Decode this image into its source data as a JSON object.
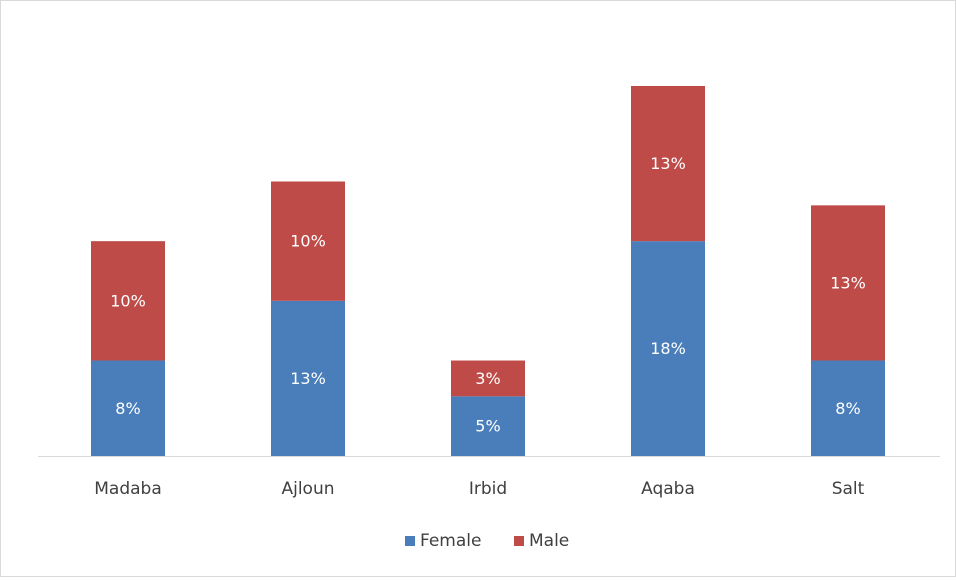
{
  "chart_data": {
    "type": "stacked_bar",
    "categories": [
      "Madaba",
      "Ajloun",
      "Irbid",
      "Aqaba",
      "Salt"
    ],
    "series": [
      {
        "name": "Female",
        "color": "#4a7ebb",
        "values": [
          8,
          13,
          5,
          18,
          8
        ],
        "value_labels": [
          "8%",
          "13%",
          "5%",
          "18%",
          "8%"
        ]
      },
      {
        "name": "Male",
        "color": "#be4b48",
        "values": [
          10,
          10,
          3,
          13,
          13
        ],
        "value_labels": [
          "10%",
          "10%",
          "3%",
          "13%",
          "13%"
        ]
      }
    ],
    "legend": "bottom"
  }
}
